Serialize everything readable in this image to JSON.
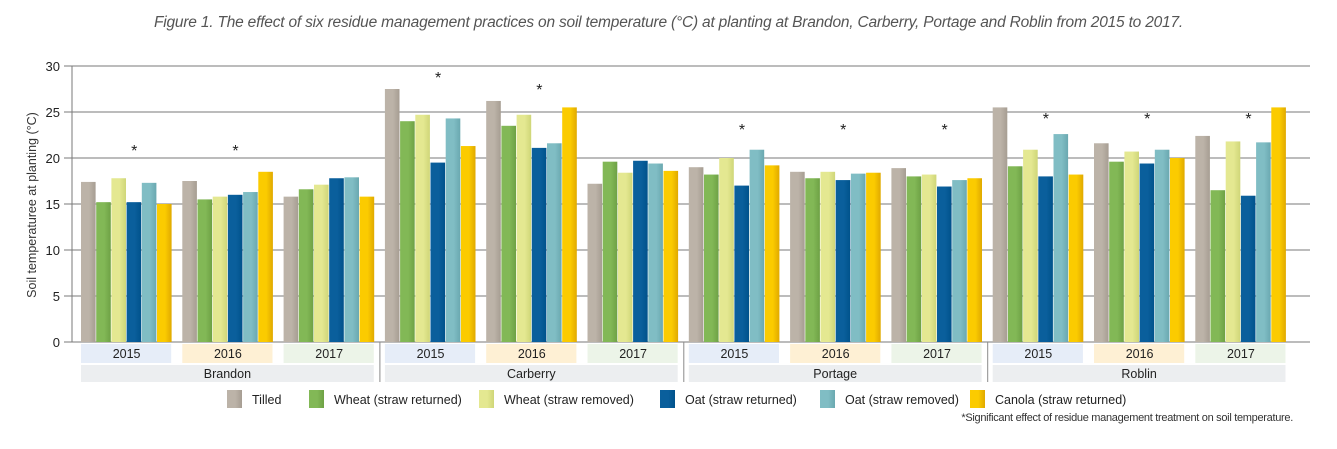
{
  "chart_data": {
    "type": "bar",
    "title": "Figure 1. The effect of six residue management practices on soil temperature (°C) at planting at Brandon, Carberry, Portage and Roblin from 2015 to 2017.",
    "xlabel": "",
    "ylabel": "Soil temperaturee at planting (°C)",
    "ylim": [
      0,
      30
    ],
    "yticks": [
      0,
      5,
      10,
      15,
      20,
      25,
      30
    ],
    "grid": true,
    "legend_position": "bottom",
    "locations": [
      "Brandon",
      "Carberry",
      "Portage",
      "Roblin"
    ],
    "years": [
      "2015",
      "2016",
      "2017"
    ],
    "year_colors": {
      "2015": "#e6edf8",
      "2016": "#fef0d4",
      "2017": "#ecf4e8"
    },
    "location_band_color": "#eceef0",
    "categories": [
      "Brandon 2015",
      "Brandon 2016",
      "Brandon 2017",
      "Carberry 2015",
      "Carberry 2016",
      "Carberry 2017",
      "Portage 2015",
      "Portage 2016",
      "Portage 2017",
      "Roblin 2015",
      "Roblin 2016",
      "Roblin 2017"
    ],
    "significant": [
      true,
      true,
      false,
      true,
      true,
      false,
      true,
      true,
      true,
      true,
      true,
      true
    ],
    "significance_marker": "*",
    "series": [
      {
        "name": "Tilled",
        "color": "#a69d92",
        "light": "#bcb3a8",
        "values": [
          17.4,
          17.5,
          15.8,
          27.5,
          26.2,
          17.2,
          19.0,
          18.5,
          18.9,
          25.5,
          21.6,
          22.4
        ]
      },
      {
        "name": "Wheat (straw returned)",
        "color": "#6ea145",
        "light": "#82b856",
        "values": [
          15.2,
          15.5,
          16.6,
          24.0,
          23.5,
          19.6,
          18.2,
          17.8,
          18.0,
          19.1,
          19.6,
          16.5
        ]
      },
      {
        "name": "Wheat (straw removed)",
        "color": "#cfd678",
        "light": "#e4e891",
        "values": [
          17.8,
          15.8,
          17.1,
          24.7,
          24.7,
          18.4,
          20.0,
          18.5,
          18.2,
          20.9,
          20.7,
          21.8
        ]
      },
      {
        "name": "Oat (straw returned)",
        "color": "#00528b",
        "light": "#0a5f9c",
        "values": [
          15.2,
          16.0,
          17.8,
          19.5,
          21.1,
          19.7,
          17.0,
          17.6,
          16.9,
          18.0,
          19.4,
          15.9
        ]
      },
      {
        "name": "Oat (straw removed)",
        "color": "#6aa8b0",
        "light": "#80bdc4",
        "values": [
          17.3,
          16.3,
          17.9,
          24.3,
          21.6,
          19.4,
          20.9,
          18.3,
          17.6,
          22.6,
          20.9,
          21.7
        ]
      },
      {
        "name": "Canola (straw returned)",
        "color": "#e0a900",
        "light": "#fbcb00",
        "values": [
          15.0,
          18.5,
          15.8,
          21.3,
          25.5,
          18.6,
          19.2,
          18.4,
          17.8,
          18.2,
          20.0,
          25.5
        ]
      }
    ],
    "footnote": "*Significant effect of residue management treatment on soil temperature."
  }
}
